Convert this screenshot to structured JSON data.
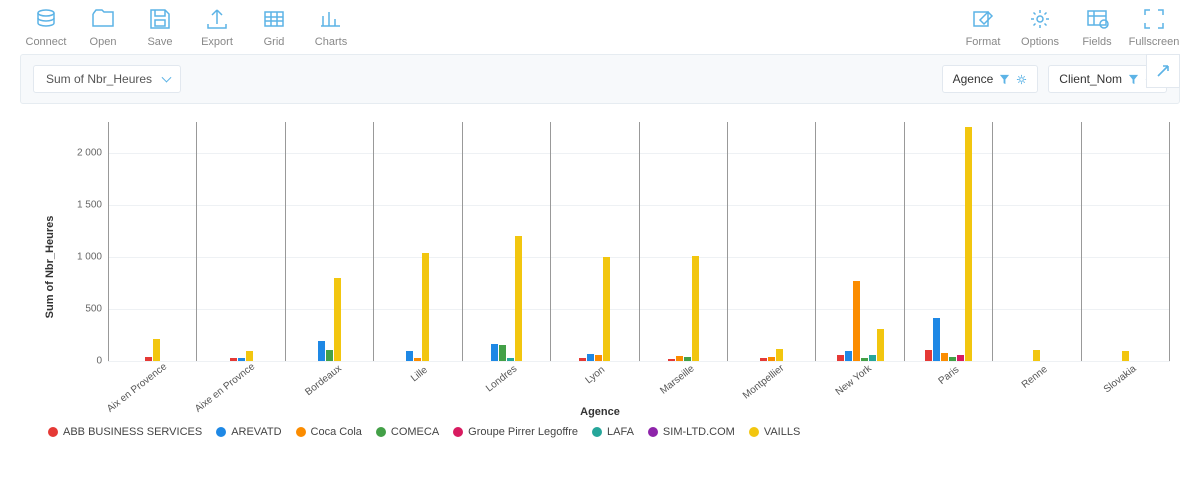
{
  "toolbar": {
    "left": [
      {
        "id": "connect",
        "label": "Connect"
      },
      {
        "id": "open",
        "label": "Open"
      },
      {
        "id": "save",
        "label": "Save"
      },
      {
        "id": "export",
        "label": "Export"
      },
      {
        "id": "grid",
        "label": "Grid"
      },
      {
        "id": "charts",
        "label": "Charts"
      }
    ],
    "right": [
      {
        "id": "format",
        "label": "Format"
      },
      {
        "id": "options",
        "label": "Options"
      },
      {
        "id": "fields",
        "label": "Fields"
      },
      {
        "id": "fullscreen",
        "label": "Fullscreen"
      }
    ]
  },
  "config": {
    "yselect": "Sum of Nbr_Heures",
    "pills": [
      {
        "id": "agence",
        "label": "Agence"
      },
      {
        "id": "client",
        "label": "Client_Nom"
      }
    ]
  },
  "chart": {
    "type": "bar-grouped",
    "ylabel": "Sum of Nbr_Heures",
    "xlabel": "Agence",
    "ylim": [
      0,
      2300
    ],
    "yticks": [
      0,
      500,
      1000,
      1500,
      2000
    ],
    "ytick_labels": [
      "0",
      "500",
      "1 000",
      "1 500",
      "2 000"
    ],
    "grid_color": "#eef1f4",
    "axis_color": "#999999",
    "background": "#ffffff",
    "series": [
      {
        "id": "abb",
        "label": "ABB BUSINESS SERVICES",
        "color": "#e53935"
      },
      {
        "id": "arevatd",
        "label": "AREVATD",
        "color": "#1e88e5"
      },
      {
        "id": "coca",
        "label": "Coca Cola",
        "color": "#fb8c00"
      },
      {
        "id": "comeca",
        "label": "COMECA",
        "color": "#43a047"
      },
      {
        "id": "pirrer",
        "label": "Groupe Pirrer Legoffre",
        "color": "#d81b60"
      },
      {
        "id": "lafa",
        "label": "LAFA",
        "color": "#26a69a"
      },
      {
        "id": "sim",
        "label": "SIM-LTD.COM",
        "color": "#8e24aa"
      },
      {
        "id": "vaills",
        "label": "VAILLS",
        "color": "#f2c60f"
      }
    ],
    "categories": [
      {
        "label": "Aix en Provence",
        "v": {
          "abb": 40,
          "vaills": 210
        }
      },
      {
        "label": "Aixe en Provnce",
        "v": {
          "abb": 30,
          "arevatd": 25,
          "vaills": 100
        }
      },
      {
        "label": "Bordeaux",
        "v": {
          "arevatd": 190,
          "comeca": 110,
          "vaills": 800
        }
      },
      {
        "label": "Lille",
        "v": {
          "arevatd": 95,
          "coca": 30,
          "vaills": 1040
        }
      },
      {
        "label": "Londres",
        "v": {
          "arevatd": 160,
          "comeca": 155,
          "lafa": 30,
          "vaills": 1200
        }
      },
      {
        "label": "Lyon",
        "v": {
          "abb": 25,
          "arevatd": 70,
          "coca": 60,
          "vaills": 1000
        }
      },
      {
        "label": "Marseille",
        "v": {
          "abb": 20,
          "coca": 45,
          "comeca": 35,
          "vaills": 1010
        }
      },
      {
        "label": "Montpellier",
        "v": {
          "abb": 25,
          "coca": 35,
          "vaills": 115
        }
      },
      {
        "label": "New York",
        "v": {
          "abb": 60,
          "arevatd": 100,
          "coca": 770,
          "comeca": 25,
          "lafa": 60,
          "vaills": 310
        }
      },
      {
        "label": "Paris",
        "v": {
          "abb": 110,
          "arevatd": 410,
          "coca": 80,
          "comeca": 40,
          "pirrer": 55,
          "vaills": 2250
        }
      },
      {
        "label": "Renne",
        "v": {
          "vaills": 105
        }
      },
      {
        "label": "Slovakia",
        "v": {
          "vaills": 100
        }
      }
    ]
  }
}
